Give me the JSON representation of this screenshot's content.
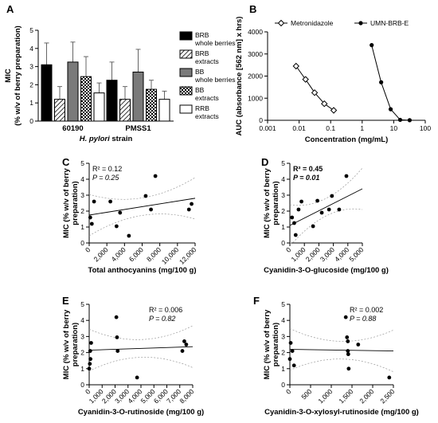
{
  "chart_data": [
    {
      "panel": "A",
      "type": "bar",
      "categories": [
        "60190",
        "PMSS1"
      ],
      "xlabel_prefix": "H. pylori",
      "xlabel_suffix": " strain",
      "ylabel_line1": "MIC",
      "ylabel_line2": "(% w/v of berry preparation)",
      "ylim": [
        0,
        5
      ],
      "yticks": [
        "0",
        "1",
        "2",
        "3",
        "4",
        "5"
      ],
      "series": [
        {
          "name": "BRB whole berries",
          "label_lines": [
            "BRB",
            "whole berries"
          ],
          "pattern": "solid",
          "values": [
            3.1,
            2.25
          ],
          "errors": [
            1.2,
            1.0
          ]
        },
        {
          "name": "BRB extracts",
          "label_lines": [
            "BRB",
            "extracts"
          ],
          "pattern": "hatch",
          "values": [
            1.2,
            1.2
          ],
          "errors": [
            0.7,
            0.7
          ]
        },
        {
          "name": "BB whole berries",
          "label_lines": [
            "BB",
            "whole berries"
          ],
          "pattern": "gray",
          "values": [
            3.25,
            2.7
          ],
          "errors": [
            1.1,
            1.25
          ]
        },
        {
          "name": "BB extracts",
          "label_lines": [
            "BB",
            "extracts"
          ],
          "pattern": "dots",
          "values": [
            2.45,
            1.75
          ],
          "errors": [
            1.1,
            0.5
          ]
        },
        {
          "name": "RRB extracts",
          "label_lines": [
            "RRB",
            "extracts"
          ],
          "pattern": "white",
          "values": [
            1.55,
            1.2
          ],
          "errors": [
            0.55,
            0.45
          ]
        }
      ]
    },
    {
      "panel": "B",
      "type": "line",
      "xscale": "log",
      "xlabel": "Concentration (mg/mL)",
      "ylabel": "AUC (absorbance [562 nm] x hrs)",
      "xlim": [
        0.001,
        100
      ],
      "ylim": [
        0,
        4000
      ],
      "xticks": [
        "0.001",
        "0.01",
        "0.1",
        "1",
        "10",
        "100"
      ],
      "yticks": [
        "0",
        "1000",
        "2000",
        "3000",
        "4000"
      ],
      "series": [
        {
          "name": "Metronidazole",
          "marker": "open-diamond",
          "x": [
            0.008,
            0.016,
            0.031,
            0.063,
            0.125
          ],
          "y": [
            2450,
            1850,
            1250,
            750,
            450
          ]
        },
        {
          "name": "UMN-BRB-E",
          "marker": "filled-circle",
          "x": [
            2,
            4,
            8,
            16,
            32
          ],
          "y": [
            3400,
            1720,
            500,
            20,
            5
          ]
        }
      ]
    },
    {
      "panel": "C",
      "type": "scatter",
      "xlabel": "Total anthocyanins (mg/100 g)",
      "ylabel_lines": [
        "MIC (% w/v of berry",
        "preparation)"
      ],
      "xlim": [
        0,
        12000
      ],
      "ylim": [
        0,
        5
      ],
      "xticks": [
        "0",
        "2,000",
        "4,000",
        "6,000",
        "8,000",
        "10,000",
        "12,000"
      ],
      "yticks": [
        "0",
        "1",
        "2",
        "3",
        "4",
        "5"
      ],
      "r2_label": "R² = 0.12",
      "p_label": "P = 0.25",
      "stats_bold": false,
      "points": [
        [
          120,
          1.6
        ],
        [
          300,
          1.2
        ],
        [
          550,
          2.6
        ],
        [
          2400,
          2.6
        ],
        [
          3100,
          1.05
        ],
        [
          3500,
          1.9
        ],
        [
          4500,
          0.45
        ],
        [
          6400,
          2.95
        ],
        [
          7000,
          2.1
        ],
        [
          7500,
          4.2
        ],
        [
          11300,
          2.1
        ],
        [
          11600,
          2.45
        ]
      ],
      "fit": {
        "slope": 8.8e-05,
        "intercept": 1.75
      }
    },
    {
      "panel": "D",
      "type": "scatter",
      "xlabel": "Cyanidin-3-O-glucoside (mg/100 g)",
      "ylabel_lines": [
        "MIC (% w/v of berry",
        "preparation)"
      ],
      "xlim": [
        0,
        5000
      ],
      "ylim": [
        0,
        5
      ],
      "xticks": [
        "0",
        "1,000",
        "2,000",
        "3,000",
        "4,000",
        "5,000"
      ],
      "yticks": [
        "0",
        "1",
        "2",
        "3",
        "4",
        "5"
      ],
      "r2_label": "R² = 0.45",
      "p_label": "P = 0.01",
      "stats_bold": true,
      "points": [
        [
          150,
          1.6
        ],
        [
          300,
          1.25
        ],
        [
          400,
          0.5
        ],
        [
          600,
          2.1
        ],
        [
          800,
          2.6
        ],
        [
          1600,
          1.05
        ],
        [
          1900,
          2.65
        ],
        [
          2200,
          1.9
        ],
        [
          2700,
          2.1
        ],
        [
          2900,
          2.95
        ],
        [
          3400,
          2.1
        ],
        [
          3900,
          4.2
        ]
      ],
      "fit": {
        "slope": 0.00046,
        "intercept": 1.1
      }
    },
    {
      "panel": "E",
      "type": "scatter",
      "xlabel": "Cyanidin-3-O-rutinoside (mg/100 g)",
      "ylabel_lines": [
        "MIC (% w/v of berry",
        "preparation)"
      ],
      "xlim": [
        0,
        8000
      ],
      "ylim": [
        0,
        5
      ],
      "xticks": [
        "0",
        "1,000",
        "2,000",
        "3,000",
        "4,000",
        "5,000",
        "6,000",
        "7,000",
        "8,000"
      ],
      "yticks": [
        "0",
        "1",
        "2",
        "3",
        "4",
        "5"
      ],
      "r2_label": "R² = 0.006",
      "p_label": "P = 0.82",
      "stats_bold": false,
      "points": [
        [
          0,
          1.0
        ],
        [
          50,
          1.3
        ],
        [
          80,
          2.1
        ],
        [
          100,
          1.6
        ],
        [
          150,
          2.6
        ],
        [
          2100,
          4.2
        ],
        [
          2150,
          2.95
        ],
        [
          2200,
          2.1
        ],
        [
          3700,
          0.45
        ],
        [
          7200,
          2.1
        ],
        [
          7350,
          2.7
        ],
        [
          7500,
          2.5
        ]
      ],
      "fit": {
        "slope": 2.7e-05,
        "intercept": 2.15
      }
    },
    {
      "panel": "F",
      "type": "scatter",
      "xlabel": "Cyanidin-3-O-xylosyl-rutinoside (mg/100 g)",
      "ylabel_lines": [
        "MIC (% w/v of berry",
        "preparation)"
      ],
      "xlim": [
        0,
        2500
      ],
      "ylim": [
        0,
        5
      ],
      "xticks": [
        "0",
        "500",
        "1,000",
        "1,500",
        "2,000",
        "2,500"
      ],
      "yticks": [
        "0",
        "1",
        "2",
        "3",
        "4",
        "5"
      ],
      "r2_label": "R² = 0.002",
      "p_label": "P = 0.88",
      "stats_bold": false,
      "points": [
        [
          0,
          1.6
        ],
        [
          20,
          2.6
        ],
        [
          60,
          2.1
        ],
        [
          100,
          1.2
        ],
        [
          1350,
          4.2
        ],
        [
          1380,
          2.95
        ],
        [
          1400,
          2.7
        ],
        [
          1400,
          2.1
        ],
        [
          1410,
          1.9
        ],
        [
          1420,
          1.0
        ],
        [
          1650,
          2.5
        ],
        [
          2400,
          0.45
        ]
      ],
      "fit": {
        "slope": -4e-05,
        "intercept": 2.2
      }
    }
  ]
}
